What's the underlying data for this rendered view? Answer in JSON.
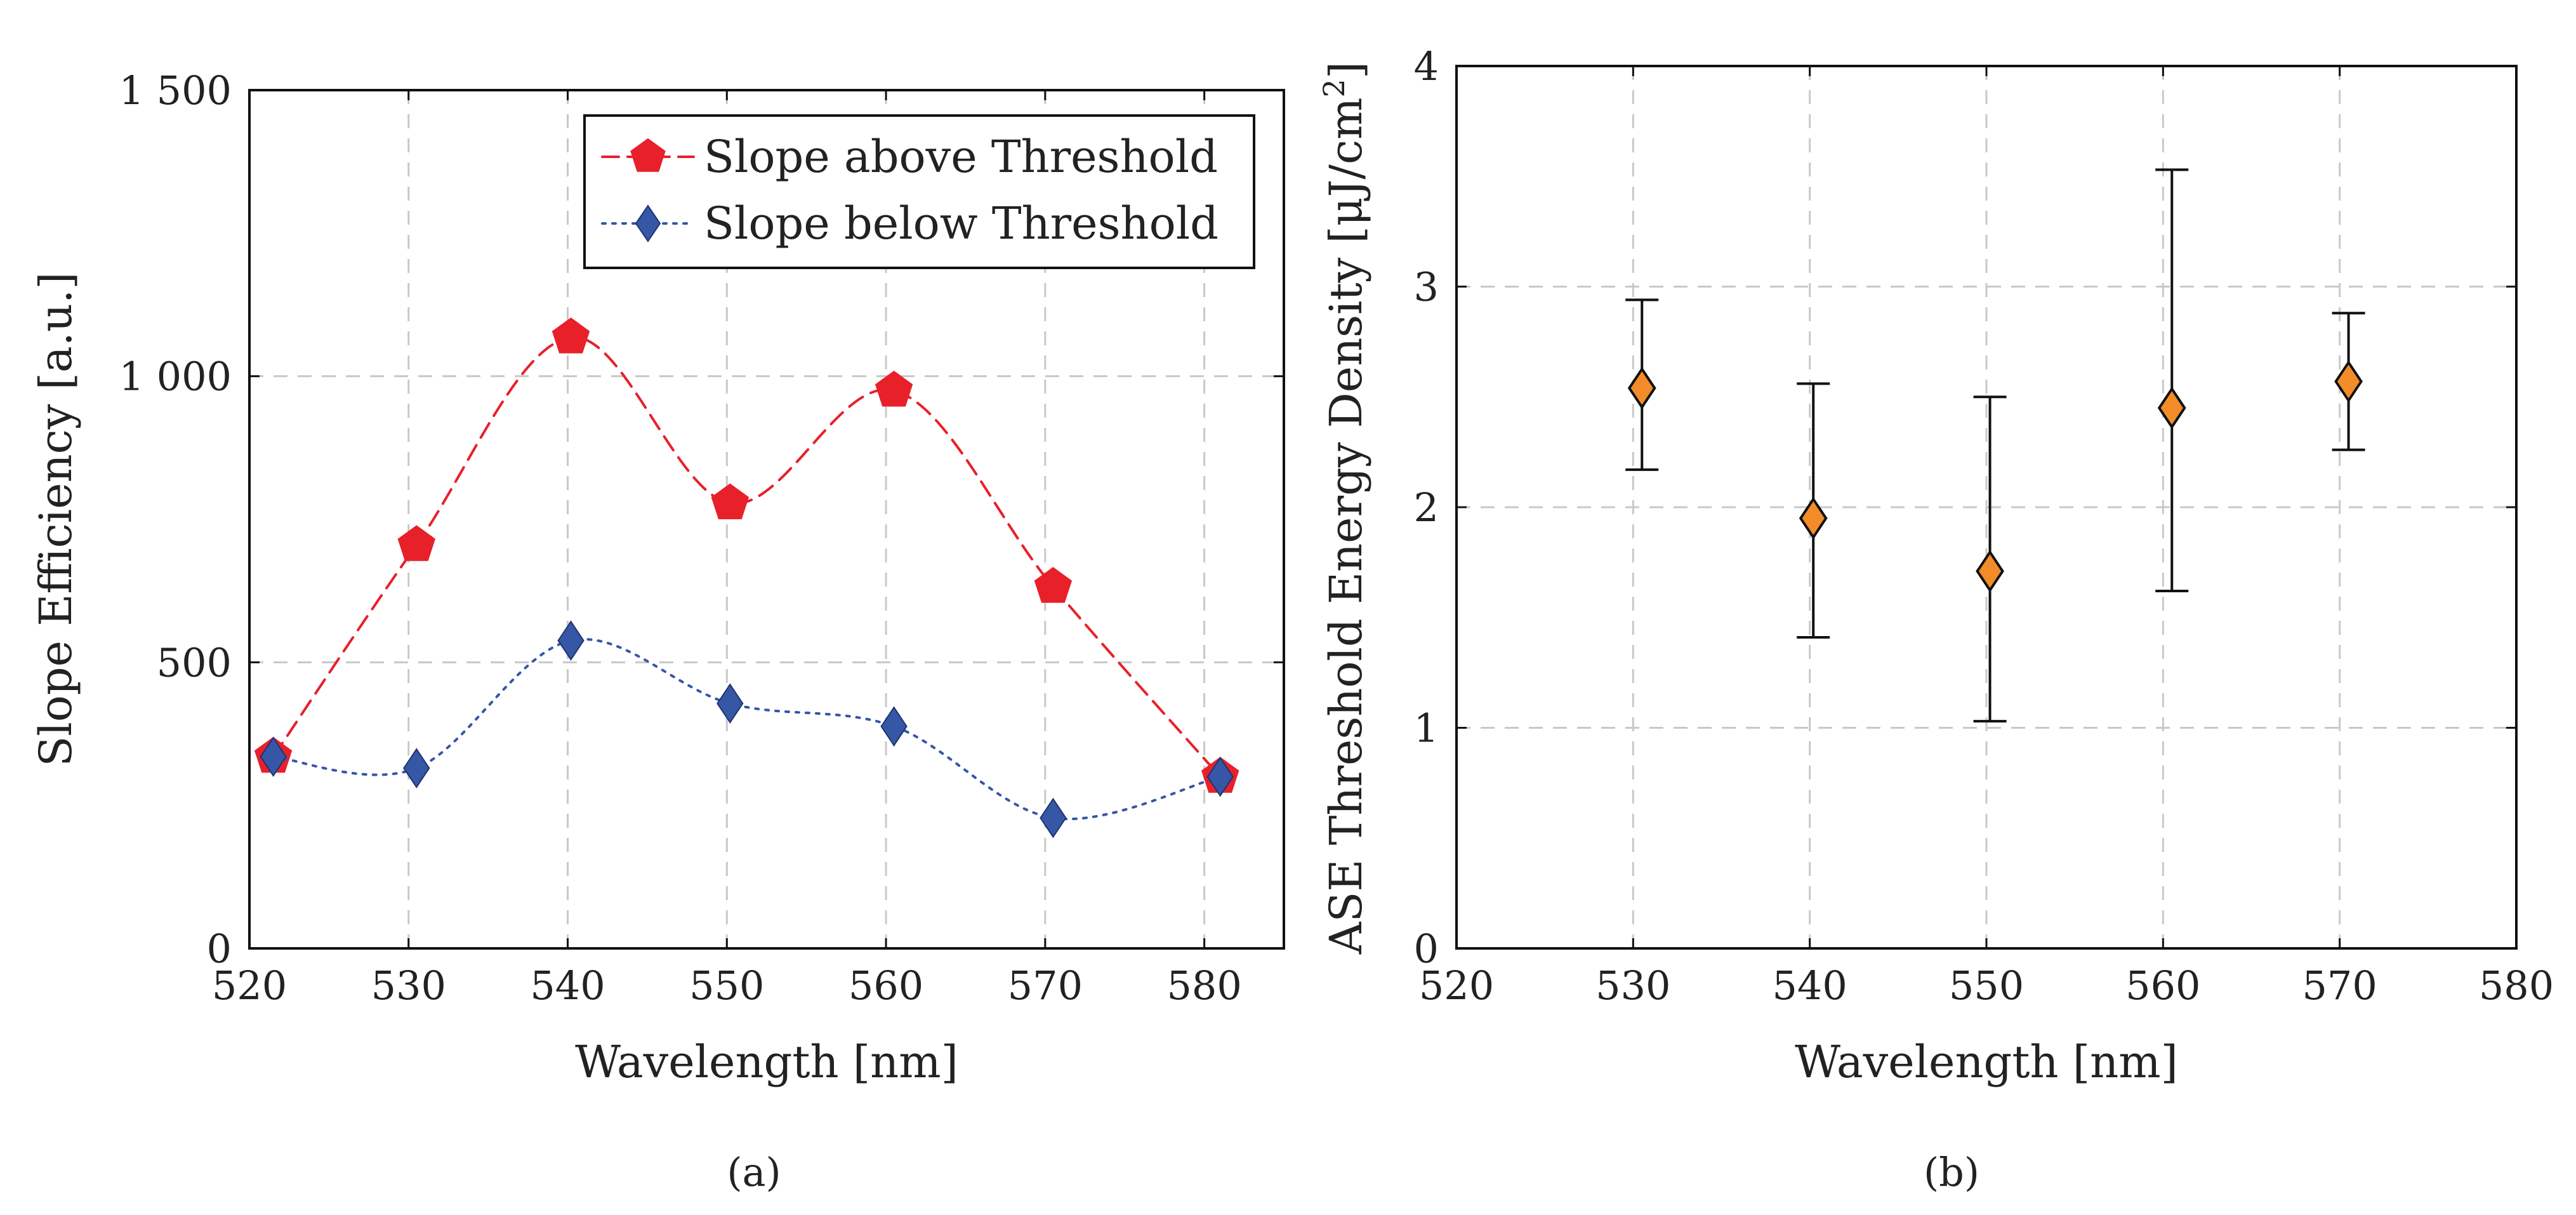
{
  "chart_data": [
    {
      "id": "a",
      "type": "line",
      "panel_label": "(a)",
      "title": "",
      "xlabel": "Wavelength [nm]",
      "ylabel": "Slope Efficiency [a.u.]",
      "xlim": [
        520,
        585
      ],
      "ylim": [
        0,
        1500
      ],
      "xticks": [
        520,
        530,
        540,
        550,
        560,
        570,
        580
      ],
      "yticks": [
        0,
        500,
        1000,
        1500
      ],
      "ytick_labels": [
        "0",
        "500",
        "1 000",
        "1 500"
      ],
      "grid": true,
      "legend_position": "top-right",
      "series": [
        {
          "name": "Slope above Threshold",
          "color": "#e8202a",
          "marker": "pentagon",
          "line_style": "dashed",
          "x": [
            521.5,
            530.5,
            540.2,
            550.2,
            560.5,
            570.5,
            581
          ],
          "values": [
            335,
            705,
            1068,
            778,
            975,
            632,
            300
          ]
        },
        {
          "name": "Slope below Threshold",
          "color": "#3656a6",
          "marker": "diamond",
          "line_style": "dotted",
          "x": [
            521.5,
            530.5,
            540.2,
            550.2,
            560.5,
            570.5,
            581
          ],
          "values": [
            335,
            315,
            538,
            428,
            388,
            228,
            300
          ]
        }
      ]
    },
    {
      "id": "b",
      "type": "scatter",
      "panel_label": "(b)",
      "title": "",
      "xlabel": "Wavelength [nm]",
      "ylabel": "ASE Threshold Energy Density [μJ/cm",
      "ylabel_superscript": "2",
      "ylabel_suffix": "]",
      "xlim": [
        520,
        580
      ],
      "ylim": [
        0,
        4
      ],
      "xticks": [
        520,
        530,
        540,
        550,
        560,
        570,
        580
      ],
      "yticks": [
        0,
        1,
        2,
        3,
        4
      ],
      "grid": true,
      "series": [
        {
          "name": "ASE Threshold",
          "color": "#f28c28",
          "marker": "diamond",
          "x": [
            530.5,
            540.2,
            550.2,
            560.5,
            570.5
          ],
          "values": [
            2.54,
            1.95,
            1.71,
            2.45,
            2.57
          ],
          "err_low": [
            2.17,
            1.41,
            1.03,
            1.62,
            2.26
          ],
          "err_high": [
            2.94,
            2.56,
            2.5,
            3.53,
            2.88
          ]
        }
      ]
    }
  ]
}
